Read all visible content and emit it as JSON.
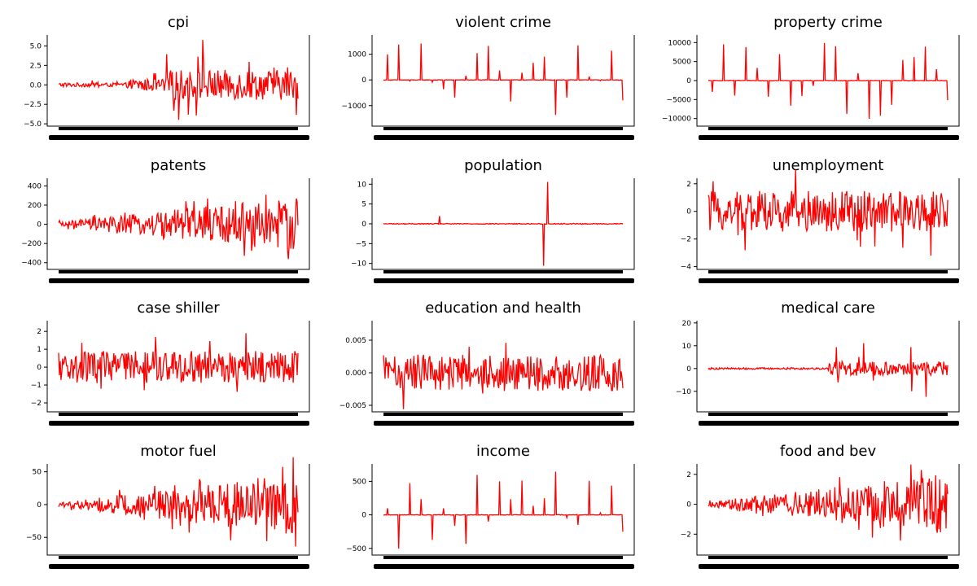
{
  "chart_data": [
    {
      "type": "line",
      "title": "cpi",
      "ylim": [
        -5.3,
        6.4
      ],
      "yticks": [
        -5.0,
        -2.5,
        0.0,
        2.5,
        5.0
      ],
      "ytick_labels": [
        "−5.0",
        "−2.5",
        "0.0",
        "2.5",
        "5.0"
      ],
      "shape": "cpi",
      "color": "#ff0000",
      "grid": false,
      "x_summary": "dense unreadable date tick labels",
      "values": []
    },
    {
      "type": "line",
      "title": "violent crime",
      "ylim": [
        -1800,
        1750
      ],
      "yticks": [
        -1000,
        0,
        1000
      ],
      "ytick_labels": [
        "−1000",
        "0",
        "1000"
      ],
      "shape": "pulse",
      "color": "#ff0000",
      "grid": false,
      "values": []
    },
    {
      "type": "line",
      "title": "property crime",
      "ylim": [
        -12000,
        12000
      ],
      "yticks": [
        -10000,
        -5000,
        0,
        5000,
        10000
      ],
      "ytick_labels": [
        "−10000",
        "−5000",
        "0",
        "5000",
        "10000"
      ],
      "shape": "pulse",
      "color": "#ff0000",
      "grid": false,
      "values": []
    },
    {
      "type": "line",
      "title": "patents",
      "ylim": [
        -470,
        480
      ],
      "yticks": [
        -400,
        -200,
        0,
        200,
        400
      ],
      "ytick_labels": [
        "−400",
        "−200",
        "0",
        "200",
        "400"
      ],
      "shape": "growing",
      "color": "#ff0000",
      "grid": false,
      "values": []
    },
    {
      "type": "line",
      "title": "population",
      "ylim": [
        -11.5,
        11.5
      ],
      "yticks": [
        -10,
        -5,
        0,
        5,
        10
      ],
      "ytick_labels": [
        "−10",
        "−5",
        "0",
        "5",
        "10"
      ],
      "shape": "spike",
      "color": "#ff0000",
      "grid": false,
      "values": []
    },
    {
      "type": "line",
      "title": "unemployment",
      "ylim": [
        -4.2,
        2.4
      ],
      "yticks": [
        -4,
        -2,
        0,
        2
      ],
      "ytick_labels": [
        "−4",
        "−2",
        "0",
        "2"
      ],
      "shape": "noisy",
      "color": "#ff0000",
      "grid": false,
      "values": []
    },
    {
      "type": "line",
      "title": "case shiller",
      "ylim": [
        -2.5,
        2.6
      ],
      "yticks": [
        -2,
        -1,
        0,
        1,
        2
      ],
      "ytick_labels": [
        "−2",
        "−1",
        "0",
        "1",
        "2"
      ],
      "shape": "noisy",
      "color": "#ff0000",
      "grid": false,
      "values": []
    },
    {
      "type": "line",
      "title": "education and health",
      "ylim": [
        -0.006,
        0.008
      ],
      "yticks": [
        -0.005,
        0.0,
        0.005
      ],
      "ytick_labels": [
        "−0.005",
        "0.000",
        "0.005"
      ],
      "shape": "noisy",
      "color": "#ff0000",
      "grid": false,
      "values": []
    },
    {
      "type": "line",
      "title": "medical care",
      "ylim": [
        -19,
        21
      ],
      "yticks": [
        -10,
        0,
        10,
        20
      ],
      "ytick_labels": [
        "−10",
        "0",
        "10",
        "20"
      ],
      "shape": "late_spikes",
      "color": "#ff0000",
      "grid": false,
      "values": []
    },
    {
      "type": "line",
      "title": "motor fuel",
      "ylim": [
        -77,
        62
      ],
      "yticks": [
        -50,
        0,
        50
      ],
      "ytick_labels": [
        "−50",
        "0",
        "50"
      ],
      "shape": "growing",
      "color": "#ff0000",
      "grid": false,
      "values": []
    },
    {
      "type": "line",
      "title": "income",
      "ylim": [
        -600,
        760
      ],
      "yticks": [
        -500,
        0,
        500
      ],
      "ytick_labels": [
        "−500",
        "0",
        "500"
      ],
      "shape": "pulse",
      "color": "#ff0000",
      "grid": false,
      "values": []
    },
    {
      "type": "line",
      "title": "food and bev",
      "ylim": [
        -3.4,
        2.7
      ],
      "yticks": [
        -2,
        0,
        2
      ],
      "ytick_labels": [
        "−2",
        "0",
        "2"
      ],
      "shape": "growing",
      "color": "#ff0000",
      "grid": false,
      "values": []
    }
  ]
}
